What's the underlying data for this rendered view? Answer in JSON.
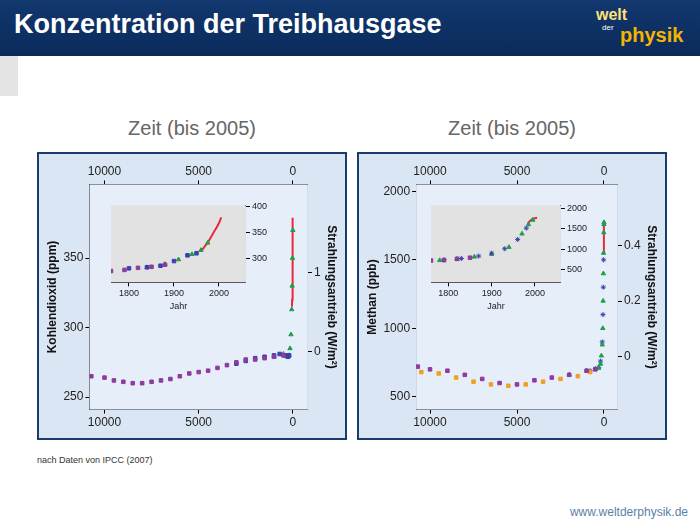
{
  "header": {
    "title": "Konzentration der Treibhausgase",
    "logo": [
      "welt",
      "der",
      "physik"
    ]
  },
  "chart_data": [
    {
      "type": "scatter",
      "title": "Zeit (bis 2005)",
      "ylabel": "Kohlendioxid (ppm)",
      "y2label": "Strahlungsantrieb (W/m²)",
      "xlim": [
        10800,
        -800
      ],
      "xticks": [
        10000,
        5000,
        0
      ],
      "ylim": [
        241,
        403
      ],
      "yticks": [
        250,
        300,
        350
      ],
      "y2lim": [
        -0.73,
        2.11
      ],
      "y2ticks": [
        0,
        1
      ],
      "grid": false,
      "series": [
        {
          "color": "#8e3a9e",
          "marker": "rect",
          "x": [
            10700,
            10000,
            9500,
            9000,
            8500,
            8000,
            7500,
            7000,
            6500,
            6000,
            5500,
            5000,
            4500,
            4000,
            3500,
            3000,
            2500,
            2000,
            1500,
            1000,
            500
          ],
          "values": [
            265,
            264,
            262,
            261,
            260,
            260,
            261,
            262,
            263,
            265,
            267,
            268,
            269,
            271,
            273,
            275,
            277,
            277,
            278,
            279,
            280
          ]
        },
        {
          "color": "#3b3fb0",
          "marker": "rect",
          "x": [
            3000,
            2500,
            2000,
            1500,
            1000,
            700,
            400,
            250,
            200
          ],
          "values": [
            274,
            276,
            278,
            279,
            280,
            281,
            280,
            279,
            280
          ]
        },
        {
          "color": "#1f9e4a",
          "marker": "triangle",
          "x": [
            1000,
            500,
            300,
            200,
            150,
            100,
            60,
            40,
            20,
            0
          ],
          "values": [
            279,
            281,
            279,
            280,
            285,
            295,
            313,
            330,
            350,
            370
          ]
        },
        {
          "color": "#e8283c",
          "type": "line",
          "line_style": "solid",
          "x": [
            47,
            40,
            30,
            20,
            10,
            5,
            0
          ],
          "values": [
            315,
            320,
            327,
            340,
            355,
            369,
            379
          ]
        }
      ],
      "inset": {
        "type": "scatter",
        "xlabel": "Jahr",
        "xlim": [
          1760,
          2060
        ],
        "xticks": [
          1800,
          1900,
          2000
        ],
        "ylim": [
          255,
          403
        ],
        "yticks": [
          300,
          350,
          400
        ],
        "grid": false,
        "series": [
          {
            "color": "#8e3a9e",
            "marker": "rect",
            "x": [
              1760,
              1790,
              1820,
              1850,
              1880
            ],
            "values": [
              277,
              279,
              283,
              285,
              289
            ]
          },
          {
            "color": "#3b3fb0",
            "marker": "rect",
            "x": [
              1800,
              1840,
              1870,
              1900,
              1930,
              1950
            ],
            "values": [
              282,
              284,
              287,
              296,
              307,
              311
            ]
          },
          {
            "color": "#1f9e4a",
            "marker": "triangle",
            "x": [
              1840,
              1880,
              1910,
              1940,
              1960,
              1975
            ],
            "values": [
              284,
              290,
              299,
              309,
              317,
              331
            ]
          },
          {
            "color": "#e8283c",
            "type": "line",
            "line_style": "solid",
            "x": [
              1958,
              1965,
              1970,
              1975,
              1980,
              1985,
              1990,
              1995,
              2000,
              2005
            ],
            "values": [
              315,
              320,
              326,
              331,
              339,
              346,
              354,
              361,
              369,
              380
            ]
          }
        ]
      }
    },
    {
      "type": "scatter",
      "title": "Zeit (bis 2005)",
      "ylabel": "Methan (ppb)",
      "y2label": "Strahlungsantrieb (W/m²)",
      "xlim": [
        10800,
        -800
      ],
      "xticks": [
        10000,
        5000,
        0
      ],
      "ylim": [
        406,
        2051
      ],
      "yticks": [
        500,
        1000,
        1500,
        2000
      ],
      "y2lim": [
        -0.19,
        0.62
      ],
      "y2ticks": [
        0,
        0.2,
        0.4
      ],
      "grid": false,
      "series": [
        {
          "color": "#8e3a9e",
          "marker": "rect",
          "x": [
            10700,
            10000,
            9000,
            8000,
            7000,
            6000,
            5000,
            4000,
            3000,
            2000,
            1000,
            500
          ],
          "values": [
            720,
            700,
            690,
            660,
            630,
            600,
            590,
            620,
            640,
            660,
            690,
            700
          ]
        },
        {
          "color": "#f0a020",
          "marker": "rect",
          "x": [
            10500,
            9500,
            8500,
            7500,
            6500,
            5500,
            4500,
            3500,
            2500,
            1500,
            800
          ],
          "values": [
            680,
            670,
            640,
            610,
            590,
            580,
            590,
            610,
            630,
            650,
            680
          ]
        },
        {
          "color": "#1f9e4a",
          "marker": "triangle",
          "x": [
            2000,
            1000,
            500,
            300,
            200,
            150,
            100,
            70,
            50,
            35,
            25,
            15,
            5,
            0
          ],
          "values": [
            660,
            690,
            700,
            710,
            740,
            800,
            880,
            1000,
            1200,
            1400,
            1550,
            1700,
            1760,
            1774
          ]
        },
        {
          "color": "#3b3fb0",
          "marker": "star",
          "x": [
            800,
            500,
            300,
            200,
            100,
            60,
            40,
            25
          ],
          "values": [
            690,
            705,
            715,
            760,
            900,
            1100,
            1300,
            1500
          ]
        },
        {
          "color": "#e8283c",
          "type": "line",
          "line_style": "solid",
          "x": [
            25,
            15,
            5,
            0
          ],
          "values": [
            1550,
            1680,
            1750,
            1774
          ]
        }
      ],
      "inset": {
        "type": "scatter",
        "xlabel": "Jahr",
        "xlim": [
          1760,
          2060
        ],
        "xticks": [
          1800,
          1900,
          2000
        ],
        "ylim": [
          180,
          2080
        ],
        "yticks": [
          500,
          1000,
          1500,
          2000
        ],
        "grid": false,
        "series": [
          {
            "color": "#8e3a9e",
            "marker": "rect",
            "x": [
              1760,
              1790,
              1820,
              1850
            ],
            "values": [
              720,
              730,
              760,
              790
            ]
          },
          {
            "color": "#3b3fb0",
            "marker": "star",
            "x": [
              1790,
              1830,
              1870,
              1900,
              1930,
              1960,
              1980
            ],
            "values": [
              740,
              770,
              830,
              900,
              1010,
              1240,
              1520
            ]
          },
          {
            "color": "#1f9e4a",
            "marker": "triangle",
            "x": [
              1780,
              1820,
              1860,
              1900,
              1940,
              1970,
              1985,
              1995
            ],
            "values": [
              725,
              760,
              810,
              880,
              1050,
              1380,
              1610,
              1720
            ]
          },
          {
            "color": "#e8283c",
            "type": "line",
            "line_style": "solid",
            "x": [
              1984,
              1988,
              1992,
              1996,
              2000,
              2005
            ],
            "values": [
              1640,
              1690,
              1730,
              1750,
              1765,
              1774
            ]
          }
        ]
      }
    }
  ],
  "source": "nach Daten von IPCC (2007)",
  "footer": "www.weltderphysik.de"
}
